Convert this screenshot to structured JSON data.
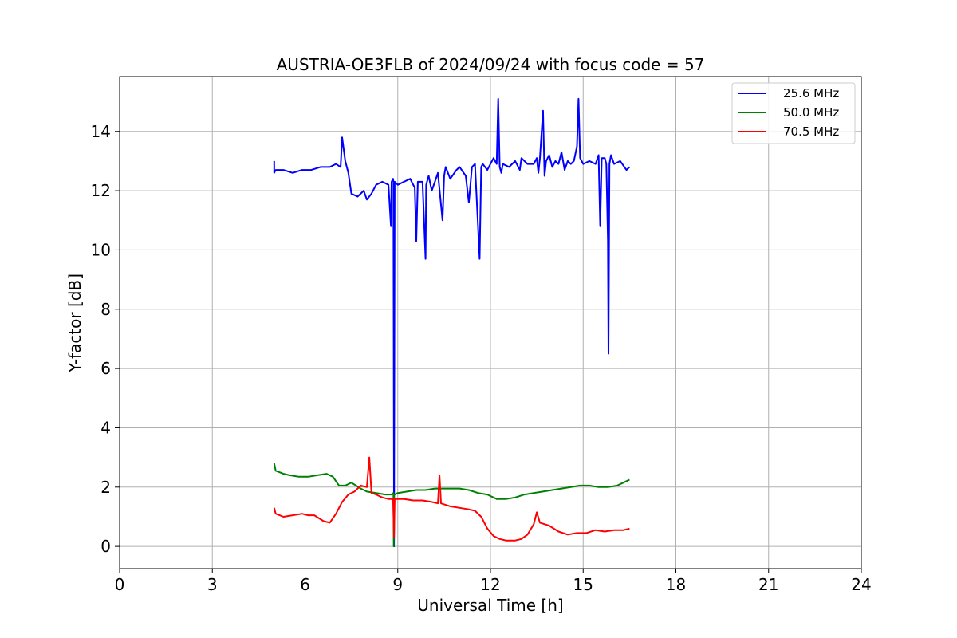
{
  "chart_data": {
    "type": "line",
    "title": "AUSTRIA-OE3FLB of 2024/09/24 with focus code = 57",
    "xlabel": "Universal Time [h]",
    "ylabel": "Y-factor [dB]",
    "xlim": [
      0,
      24
    ],
    "ylim": [
      -0.75,
      15.85
    ],
    "xticks": [
      0,
      3,
      6,
      9,
      12,
      15,
      18,
      21,
      24
    ],
    "yticks": [
      0,
      2,
      4,
      6,
      8,
      10,
      12,
      14
    ],
    "grid": true,
    "legend_position": "top-right",
    "series": [
      {
        "name": "25.6 MHz",
        "color": "#0000ff",
        "x": [
          5.0,
          5.0,
          5.05,
          5.3,
          5.6,
          5.9,
          6.2,
          6.5,
          6.8,
          7.0,
          7.15,
          7.2,
          7.3,
          7.4,
          7.5,
          7.7,
          7.9,
          8.0,
          8.15,
          8.3,
          8.5,
          8.7,
          8.78,
          8.8,
          8.85,
          8.86,
          8.88,
          8.9,
          9.0,
          9.2,
          9.4,
          9.55,
          9.6,
          9.65,
          9.8,
          9.9,
          9.92,
          10.0,
          10.1,
          10.2,
          10.3,
          10.45,
          10.5,
          10.55,
          10.7,
          10.9,
          11.0,
          11.2,
          11.3,
          11.4,
          11.5,
          11.65,
          11.7,
          11.75,
          11.9,
          12.0,
          12.1,
          12.2,
          12.25,
          12.3,
          12.35,
          12.4,
          12.6,
          12.8,
          12.95,
          13.0,
          13.2,
          13.4,
          13.5,
          13.55,
          13.6,
          13.7,
          13.75,
          13.8,
          13.9,
          14.0,
          14.1,
          14.2,
          14.3,
          14.4,
          14.5,
          14.6,
          14.7,
          14.8,
          14.85,
          14.9,
          15.0,
          15.2,
          15.4,
          15.5,
          15.55,
          15.6,
          15.7,
          15.75,
          15.8,
          15.82,
          15.85,
          15.9,
          16.0,
          16.2,
          16.4,
          16.5
        ],
        "y": [
          13.0,
          12.6,
          12.7,
          12.7,
          12.6,
          12.7,
          12.7,
          12.8,
          12.8,
          12.9,
          12.8,
          13.8,
          13.0,
          12.6,
          11.9,
          11.8,
          12.0,
          11.7,
          11.9,
          12.2,
          12.3,
          12.2,
          10.8,
          12.3,
          12.4,
          12.3,
          0.0,
          12.3,
          12.2,
          12.3,
          12.4,
          12.1,
          10.3,
          12.3,
          12.3,
          9.7,
          12.2,
          12.5,
          12.0,
          12.3,
          12.6,
          11.0,
          12.5,
          12.8,
          12.4,
          12.7,
          12.8,
          12.5,
          11.6,
          12.8,
          12.9,
          9.7,
          12.8,
          12.9,
          12.7,
          12.9,
          13.1,
          12.9,
          15.1,
          12.8,
          12.6,
          12.9,
          12.8,
          13.0,
          12.7,
          13.1,
          12.9,
          12.9,
          13.1,
          12.6,
          13.1,
          14.7,
          12.5,
          13.0,
          13.2,
          12.8,
          13.0,
          12.9,
          13.3,
          12.7,
          13.0,
          12.9,
          13.0,
          13.5,
          15.1,
          13.1,
          12.9,
          13.0,
          12.9,
          13.2,
          10.8,
          13.1,
          13.1,
          12.9,
          10.3,
          6.5,
          12.9,
          13.2,
          12.9,
          13.0,
          12.7,
          12.8
        ]
      },
      {
        "name": "50.0 MHz",
        "color": "#008000",
        "x": [
          5.0,
          5.05,
          5.3,
          5.5,
          5.8,
          6.1,
          6.4,
          6.7,
          6.9,
          7.1,
          7.3,
          7.5,
          7.8,
          8.0,
          8.3,
          8.6,
          8.8,
          8.86,
          8.87,
          8.88,
          8.9,
          9.0,
          9.3,
          9.6,
          9.9,
          10.2,
          10.5,
          10.8,
          11.0,
          11.3,
          11.6,
          11.9,
          12.2,
          12.5,
          12.8,
          13.1,
          13.4,
          13.7,
          14.0,
          14.3,
          14.6,
          14.9,
          15.2,
          15.5,
          15.8,
          16.1,
          16.3,
          16.5
        ],
        "y": [
          2.8,
          2.55,
          2.45,
          2.4,
          2.35,
          2.35,
          2.4,
          2.45,
          2.35,
          2.05,
          2.05,
          2.15,
          1.95,
          1.85,
          1.8,
          1.75,
          1.75,
          1.8,
          0.0,
          1.75,
          1.75,
          1.8,
          1.85,
          1.9,
          1.9,
          1.95,
          1.95,
          1.95,
          1.95,
          1.9,
          1.8,
          1.75,
          1.6,
          1.6,
          1.65,
          1.75,
          1.8,
          1.85,
          1.9,
          1.95,
          2.0,
          2.05,
          2.05,
          2.0,
          2.0,
          2.05,
          2.15,
          2.25
        ]
      },
      {
        "name": "70.5 MHz",
        "color": "#ff0000",
        "x": [
          5.0,
          5.05,
          5.3,
          5.6,
          5.9,
          6.1,
          6.3,
          6.6,
          6.8,
          7.0,
          7.2,
          7.4,
          7.6,
          7.8,
          8.0,
          8.08,
          8.15,
          8.3,
          8.5,
          8.7,
          8.85,
          8.88,
          8.9,
          9.2,
          9.5,
          9.8,
          10.1,
          10.3,
          10.35,
          10.4,
          10.7,
          11.0,
          11.3,
          11.5,
          11.7,
          11.9,
          12.1,
          12.3,
          12.5,
          12.8,
          13.0,
          13.2,
          13.4,
          13.5,
          13.6,
          13.9,
          14.2,
          14.5,
          14.8,
          15.1,
          15.4,
          15.7,
          16.0,
          16.3,
          16.5
        ],
        "y": [
          1.3,
          1.1,
          1.0,
          1.05,
          1.1,
          1.05,
          1.05,
          0.85,
          0.8,
          1.1,
          1.5,
          1.75,
          1.85,
          2.05,
          2.0,
          3.0,
          1.8,
          1.75,
          1.65,
          1.6,
          1.6,
          0.3,
          1.6,
          1.6,
          1.55,
          1.55,
          1.5,
          1.45,
          2.4,
          1.45,
          1.35,
          1.3,
          1.25,
          1.2,
          1.0,
          0.6,
          0.35,
          0.25,
          0.2,
          0.2,
          0.25,
          0.4,
          0.75,
          1.15,
          0.8,
          0.7,
          0.5,
          0.4,
          0.45,
          0.45,
          0.55,
          0.5,
          0.55,
          0.55,
          0.6
        ]
      }
    ]
  }
}
